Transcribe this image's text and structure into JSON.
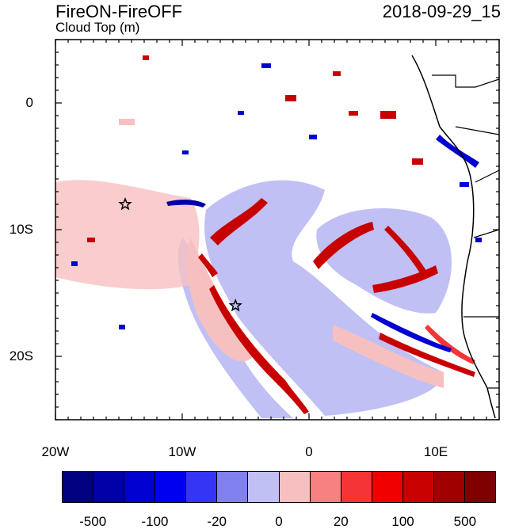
{
  "title": {
    "left": "FireON-FireOFF",
    "variable": "Cloud Top (m)",
    "right": "2018-09-29_15"
  },
  "axes": {
    "y_labels": [
      {
        "text": "0",
        "value": 0
      },
      {
        "text": "10S",
        "value": -10
      },
      {
        "text": "20S",
        "value": -20
      }
    ],
    "x_labels": [
      {
        "text": "20W",
        "value": -20
      },
      {
        "text": "10W",
        "value": -10
      },
      {
        "text": "0",
        "value": 0
      },
      {
        "text": "10E",
        "value": 10
      }
    ],
    "lon_range": [
      -20,
      15
    ],
    "lat_range": [
      -25,
      5
    ]
  },
  "markers": [
    {
      "name": "star-marker",
      "lon": -14.5,
      "lat": -8
    },
    {
      "name": "star-marker",
      "lon": -5.8,
      "lat": -16
    }
  ],
  "colorbar": {
    "colors": [
      "#000080",
      "#0000a8",
      "#0000d0",
      "#0000f0",
      "#3535f5",
      "#8080f0",
      "#c0c0f4",
      "#f7c0c0",
      "#f78080",
      "#f53535",
      "#f00000",
      "#c80000",
      "#a00000",
      "#800000"
    ],
    "labels": [
      {
        "text": "-500",
        "index": 1
      },
      {
        "text": "-100",
        "index": 3
      },
      {
        "text": "-20",
        "index": 5
      },
      {
        "text": "0",
        "index": 7
      },
      {
        "text": "20",
        "index": 9
      },
      {
        "text": "100",
        "index": 11
      },
      {
        "text": "500",
        "index": 13
      }
    ]
  }
}
